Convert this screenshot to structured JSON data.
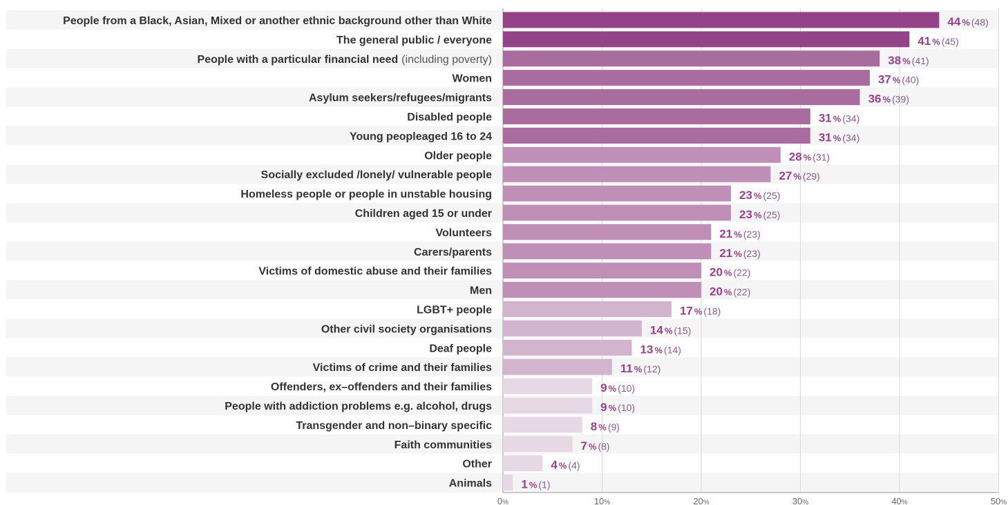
{
  "chart_data": {
    "type": "bar",
    "orientation": "horizontal",
    "categories": [
      {
        "label": "People from a Black, Asian, Mixed or another ethnic background other than White",
        "note": ""
      },
      {
        "label": "The general public / everyone",
        "note": ""
      },
      {
        "label": "People with a particular financial need",
        "note": "(including poverty)"
      },
      {
        "label": "Women",
        "note": ""
      },
      {
        "label": "Asylum seekers/refugees/migrants",
        "note": ""
      },
      {
        "label": "Disabled people",
        "note": ""
      },
      {
        "label": "Young peopleaged 16 to 24",
        "note": ""
      },
      {
        "label": "Older people",
        "note": ""
      },
      {
        "label": "Socially excluded /lonely/ vulnerable people",
        "note": ""
      },
      {
        "label": "Homeless people or people in unstable housing",
        "note": ""
      },
      {
        "label": "Children aged 15 or under",
        "note": ""
      },
      {
        "label": "Volunteers",
        "note": ""
      },
      {
        "label": "Carers/parents",
        "note": ""
      },
      {
        "label": "Victims of domestic abuse and their families",
        "note": ""
      },
      {
        "label": "Men",
        "note": ""
      },
      {
        "label": "LGBT+ people",
        "note": ""
      },
      {
        "label": "Other civil society organisations",
        "note": ""
      },
      {
        "label": "Deaf people",
        "note": ""
      },
      {
        "label": "Victims of crime and their families",
        "note": ""
      },
      {
        "label": "Offenders, ex–offenders and their families",
        "note": ""
      },
      {
        "label": "People with addiction problems e.g. alcohol, drugs",
        "note": ""
      },
      {
        "label": "Transgender and non–binary specific",
        "note": ""
      },
      {
        "label": "Faith communities",
        "note": ""
      },
      {
        "label": "Other",
        "note": ""
      },
      {
        "label": "Animals",
        "note": ""
      }
    ],
    "values": [
      44,
      41,
      38,
      37,
      36,
      31,
      31,
      28,
      27,
      23,
      23,
      21,
      21,
      20,
      20,
      17,
      14,
      13,
      11,
      9,
      9,
      8,
      7,
      4,
      1
    ],
    "counts": [
      "(48)",
      "(45)",
      "(41)",
      "(40)",
      "(39)",
      "(34)",
      "(34)",
      "(31)",
      "(29)",
      "(25)",
      "(25)",
      "(23)",
      "(23)",
      "(22)",
      "(22)",
      "(18)",
      "(15)",
      "(14)",
      "(12)",
      "(10)",
      "(10)",
      "(9)",
      "(8)",
      "(4)",
      "(1)"
    ],
    "value_suffix": "%",
    "xlim": [
      0,
      50
    ],
    "xticks": [
      0,
      10,
      20,
      30,
      40,
      50
    ],
    "grid": true,
    "title": "",
    "xlabel": "",
    "ylabel": "",
    "colors": {
      "band": "#f5f5f5",
      "grid": "#d9d9d9",
      "label": "#9b3f8f",
      "count": "#8e5a8a",
      "shades": [
        {
          "min": 40,
          "color": "#944388"
        },
        {
          "min": 30,
          "color": "#a96c9e"
        },
        {
          "min": 20,
          "color": "#bf8fb7"
        },
        {
          "min": 11,
          "color": "#d3b4cf"
        },
        {
          "min": 0,
          "color": "#e7d8e5"
        }
      ]
    }
  }
}
